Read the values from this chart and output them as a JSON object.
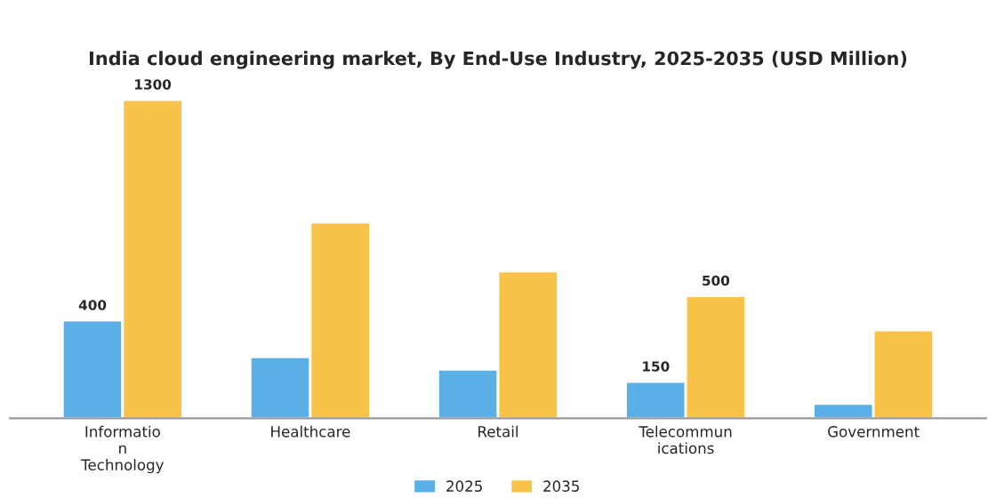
{
  "chart_data": {
    "type": "bar",
    "title": "India cloud engineering market, By End-Use Industry, 2025-2035 (USD Million)",
    "categories": [
      "Informatio\nn\nTechnology",
      "Healthcare",
      "Retail",
      "Telecommun\nications",
      "Government"
    ],
    "series": [
      {
        "name": "2025",
        "color": "#5aafe6",
        "values": [
          400,
          250,
          200,
          150,
          60
        ],
        "value_labels": [
          "400",
          null,
          null,
          "150",
          null
        ]
      },
      {
        "name": "2035",
        "color": "#f9c34a",
        "values": [
          1300,
          800,
          600,
          500,
          360
        ],
        "value_labels": [
          "1300",
          null,
          null,
          "500",
          null
        ]
      }
    ],
    "tick_labels": "x",
    "legend": "bottom",
    "grid": false
  }
}
